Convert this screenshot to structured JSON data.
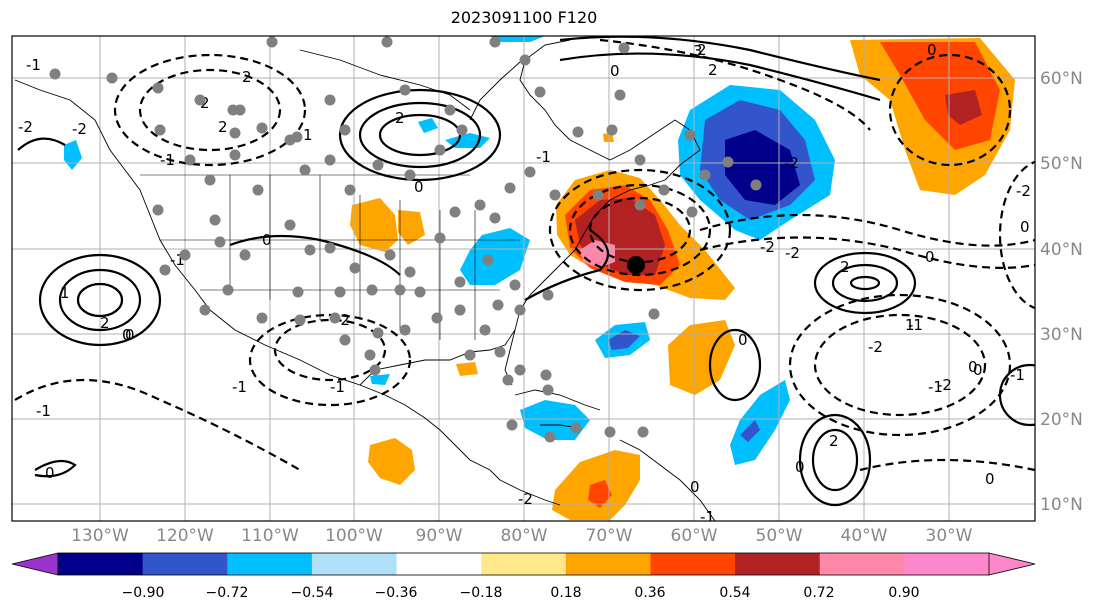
{
  "title": "2023091100 F120",
  "lon_labels": [
    "130°W",
    "120°W",
    "110°W",
    "100°W",
    "90°W",
    "80°W",
    "70°W",
    "60°W",
    "50°W",
    "40°W",
    "30°W"
  ],
  "lat_labels": [
    "60°N",
    "50°N",
    "40°N",
    "30°N",
    "20°N",
    "10°N"
  ],
  "colorbar": {
    "ticks": [
      "−0.90",
      "−0.72",
      "−0.54",
      "−0.36",
      "−0.18",
      "0.18",
      "0.36",
      "0.54",
      "0.72",
      "0.90"
    ],
    "colors": [
      "#9933cc",
      "#00008b",
      "#3355cc",
      "#00bfff",
      "#b0e0f8",
      "#ffffff",
      "#ffe88a",
      "#ffa500",
      "#ff4500",
      "#b22222",
      "#ff88aa",
      "#ff88cc"
    ]
  },
  "contour_labels": [
    "2",
    "2",
    "1",
    "0",
    "0",
    "2",
    "-2",
    "-1",
    "0",
    "-1",
    "-1",
    "0",
    "2",
    "2",
    "0",
    "-2",
    "-2",
    "-1",
    "-1",
    "0",
    "-1",
    "0",
    "2",
    "-2",
    "-2",
    "2",
    "1",
    "0",
    "0",
    "-1",
    "0",
    "-2",
    "-2",
    "-1",
    "-1",
    "1",
    "0",
    "2",
    "-1",
    "0",
    "-2",
    "0",
    "-1",
    "-2",
    "3",
    "-2",
    "0",
    "0",
    "2"
  ],
  "storm_marker": {
    "lon": -66.8,
    "lat": 38.0
  }
}
